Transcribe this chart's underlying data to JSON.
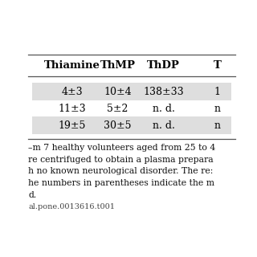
{
  "headers": [
    "Thiamine",
    "ThMP",
    "ThDP",
    "T"
  ],
  "rows": [
    [
      "4±3",
      "10±4",
      "138±33",
      "1"
    ],
    [
      "11±3",
      "5±2",
      "n. d.",
      "n"
    ],
    [
      "19±5",
      "30±5",
      "n. d.",
      "n"
    ]
  ],
  "shading_color": "#dedede",
  "row_shading": [
    true,
    false,
    true
  ],
  "footer_lines": [
    "–m 7 healthy volunteers aged from 25 to 4",
    "re centrifuged to obtain a plasma prepara",
    "h no known neurological disorder. The re:",
    "he numbers in parentheses indicate the m",
    "d.",
    "al.pone.0013616.t001"
  ],
  "background_color": "#ffffff",
  "font_size_header": 9.5,
  "font_size_data": 9.0,
  "font_size_footer": 7.8,
  "font_size_doi": 7.0
}
